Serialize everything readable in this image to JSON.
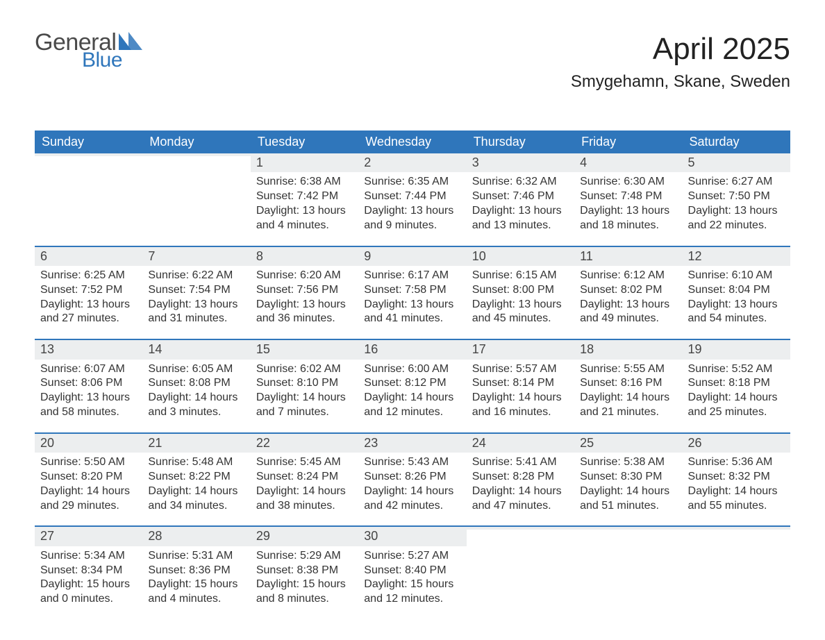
{
  "brand": {
    "word1": "General",
    "word2": "Blue",
    "blue": "#2f76bb",
    "gray": "#4a4a4a"
  },
  "header": {
    "month_title": "April 2025",
    "location": "Smygehamn, Skane, Sweden"
  },
  "weekdays": [
    "Sunday",
    "Monday",
    "Tuesday",
    "Wednesday",
    "Thursday",
    "Friday",
    "Saturday"
  ],
  "colors": {
    "header_blue": "#2f76bb",
    "row_rule": "#2f76bb",
    "daynum_bg": "#eceeef",
    "text": "#222222",
    "background": "#ffffff"
  },
  "layout": {
    "columns": 7,
    "rows": 5,
    "daynum_fontsize": 18,
    "body_fontsize": 16,
    "header_fontsize": 18,
    "title_fontsize": 44,
    "location_fontsize": 24
  },
  "weeks": [
    [
      {
        "n": "",
        "sunrise": "",
        "sunset": "",
        "daylight1": "",
        "daylight2": ""
      },
      {
        "n": "",
        "sunrise": "",
        "sunset": "",
        "daylight1": "",
        "daylight2": ""
      },
      {
        "n": "1",
        "sunrise": "Sunrise: 6:38 AM",
        "sunset": "Sunset: 7:42 PM",
        "daylight1": "Daylight: 13 hours",
        "daylight2": "and 4 minutes."
      },
      {
        "n": "2",
        "sunrise": "Sunrise: 6:35 AM",
        "sunset": "Sunset: 7:44 PM",
        "daylight1": "Daylight: 13 hours",
        "daylight2": "and 9 minutes."
      },
      {
        "n": "3",
        "sunrise": "Sunrise: 6:32 AM",
        "sunset": "Sunset: 7:46 PM",
        "daylight1": "Daylight: 13 hours",
        "daylight2": "and 13 minutes."
      },
      {
        "n": "4",
        "sunrise": "Sunrise: 6:30 AM",
        "sunset": "Sunset: 7:48 PM",
        "daylight1": "Daylight: 13 hours",
        "daylight2": "and 18 minutes."
      },
      {
        "n": "5",
        "sunrise": "Sunrise: 6:27 AM",
        "sunset": "Sunset: 7:50 PM",
        "daylight1": "Daylight: 13 hours",
        "daylight2": "and 22 minutes."
      }
    ],
    [
      {
        "n": "6",
        "sunrise": "Sunrise: 6:25 AM",
        "sunset": "Sunset: 7:52 PM",
        "daylight1": "Daylight: 13 hours",
        "daylight2": "and 27 minutes."
      },
      {
        "n": "7",
        "sunrise": "Sunrise: 6:22 AM",
        "sunset": "Sunset: 7:54 PM",
        "daylight1": "Daylight: 13 hours",
        "daylight2": "and 31 minutes."
      },
      {
        "n": "8",
        "sunrise": "Sunrise: 6:20 AM",
        "sunset": "Sunset: 7:56 PM",
        "daylight1": "Daylight: 13 hours",
        "daylight2": "and 36 minutes."
      },
      {
        "n": "9",
        "sunrise": "Sunrise: 6:17 AM",
        "sunset": "Sunset: 7:58 PM",
        "daylight1": "Daylight: 13 hours",
        "daylight2": "and 41 minutes."
      },
      {
        "n": "10",
        "sunrise": "Sunrise: 6:15 AM",
        "sunset": "Sunset: 8:00 PM",
        "daylight1": "Daylight: 13 hours",
        "daylight2": "and 45 minutes."
      },
      {
        "n": "11",
        "sunrise": "Sunrise: 6:12 AM",
        "sunset": "Sunset: 8:02 PM",
        "daylight1": "Daylight: 13 hours",
        "daylight2": "and 49 minutes."
      },
      {
        "n": "12",
        "sunrise": "Sunrise: 6:10 AM",
        "sunset": "Sunset: 8:04 PM",
        "daylight1": "Daylight: 13 hours",
        "daylight2": "and 54 minutes."
      }
    ],
    [
      {
        "n": "13",
        "sunrise": "Sunrise: 6:07 AM",
        "sunset": "Sunset: 8:06 PM",
        "daylight1": "Daylight: 13 hours",
        "daylight2": "and 58 minutes."
      },
      {
        "n": "14",
        "sunrise": "Sunrise: 6:05 AM",
        "sunset": "Sunset: 8:08 PM",
        "daylight1": "Daylight: 14 hours",
        "daylight2": "and 3 minutes."
      },
      {
        "n": "15",
        "sunrise": "Sunrise: 6:02 AM",
        "sunset": "Sunset: 8:10 PM",
        "daylight1": "Daylight: 14 hours",
        "daylight2": "and 7 minutes."
      },
      {
        "n": "16",
        "sunrise": "Sunrise: 6:00 AM",
        "sunset": "Sunset: 8:12 PM",
        "daylight1": "Daylight: 14 hours",
        "daylight2": "and 12 minutes."
      },
      {
        "n": "17",
        "sunrise": "Sunrise: 5:57 AM",
        "sunset": "Sunset: 8:14 PM",
        "daylight1": "Daylight: 14 hours",
        "daylight2": "and 16 minutes."
      },
      {
        "n": "18",
        "sunrise": "Sunrise: 5:55 AM",
        "sunset": "Sunset: 8:16 PM",
        "daylight1": "Daylight: 14 hours",
        "daylight2": "and 21 minutes."
      },
      {
        "n": "19",
        "sunrise": "Sunrise: 5:52 AM",
        "sunset": "Sunset: 8:18 PM",
        "daylight1": "Daylight: 14 hours",
        "daylight2": "and 25 minutes."
      }
    ],
    [
      {
        "n": "20",
        "sunrise": "Sunrise: 5:50 AM",
        "sunset": "Sunset: 8:20 PM",
        "daylight1": "Daylight: 14 hours",
        "daylight2": "and 29 minutes."
      },
      {
        "n": "21",
        "sunrise": "Sunrise: 5:48 AM",
        "sunset": "Sunset: 8:22 PM",
        "daylight1": "Daylight: 14 hours",
        "daylight2": "and 34 minutes."
      },
      {
        "n": "22",
        "sunrise": "Sunrise: 5:45 AM",
        "sunset": "Sunset: 8:24 PM",
        "daylight1": "Daylight: 14 hours",
        "daylight2": "and 38 minutes."
      },
      {
        "n": "23",
        "sunrise": "Sunrise: 5:43 AM",
        "sunset": "Sunset: 8:26 PM",
        "daylight1": "Daylight: 14 hours",
        "daylight2": "and 42 minutes."
      },
      {
        "n": "24",
        "sunrise": "Sunrise: 5:41 AM",
        "sunset": "Sunset: 8:28 PM",
        "daylight1": "Daylight: 14 hours",
        "daylight2": "and 47 minutes."
      },
      {
        "n": "25",
        "sunrise": "Sunrise: 5:38 AM",
        "sunset": "Sunset: 8:30 PM",
        "daylight1": "Daylight: 14 hours",
        "daylight2": "and 51 minutes."
      },
      {
        "n": "26",
        "sunrise": "Sunrise: 5:36 AM",
        "sunset": "Sunset: 8:32 PM",
        "daylight1": "Daylight: 14 hours",
        "daylight2": "and 55 minutes."
      }
    ],
    [
      {
        "n": "27",
        "sunrise": "Sunrise: 5:34 AM",
        "sunset": "Sunset: 8:34 PM",
        "daylight1": "Daylight: 15 hours",
        "daylight2": "and 0 minutes."
      },
      {
        "n": "28",
        "sunrise": "Sunrise: 5:31 AM",
        "sunset": "Sunset: 8:36 PM",
        "daylight1": "Daylight: 15 hours",
        "daylight2": "and 4 minutes."
      },
      {
        "n": "29",
        "sunrise": "Sunrise: 5:29 AM",
        "sunset": "Sunset: 8:38 PM",
        "daylight1": "Daylight: 15 hours",
        "daylight2": "and 8 minutes."
      },
      {
        "n": "30",
        "sunrise": "Sunrise: 5:27 AM",
        "sunset": "Sunset: 8:40 PM",
        "daylight1": "Daylight: 15 hours",
        "daylight2": "and 12 minutes."
      },
      {
        "n": "",
        "sunrise": "",
        "sunset": "",
        "daylight1": "",
        "daylight2": ""
      },
      {
        "n": "",
        "sunrise": "",
        "sunset": "",
        "daylight1": "",
        "daylight2": ""
      },
      {
        "n": "",
        "sunrise": "",
        "sunset": "",
        "daylight1": "",
        "daylight2": ""
      }
    ]
  ]
}
